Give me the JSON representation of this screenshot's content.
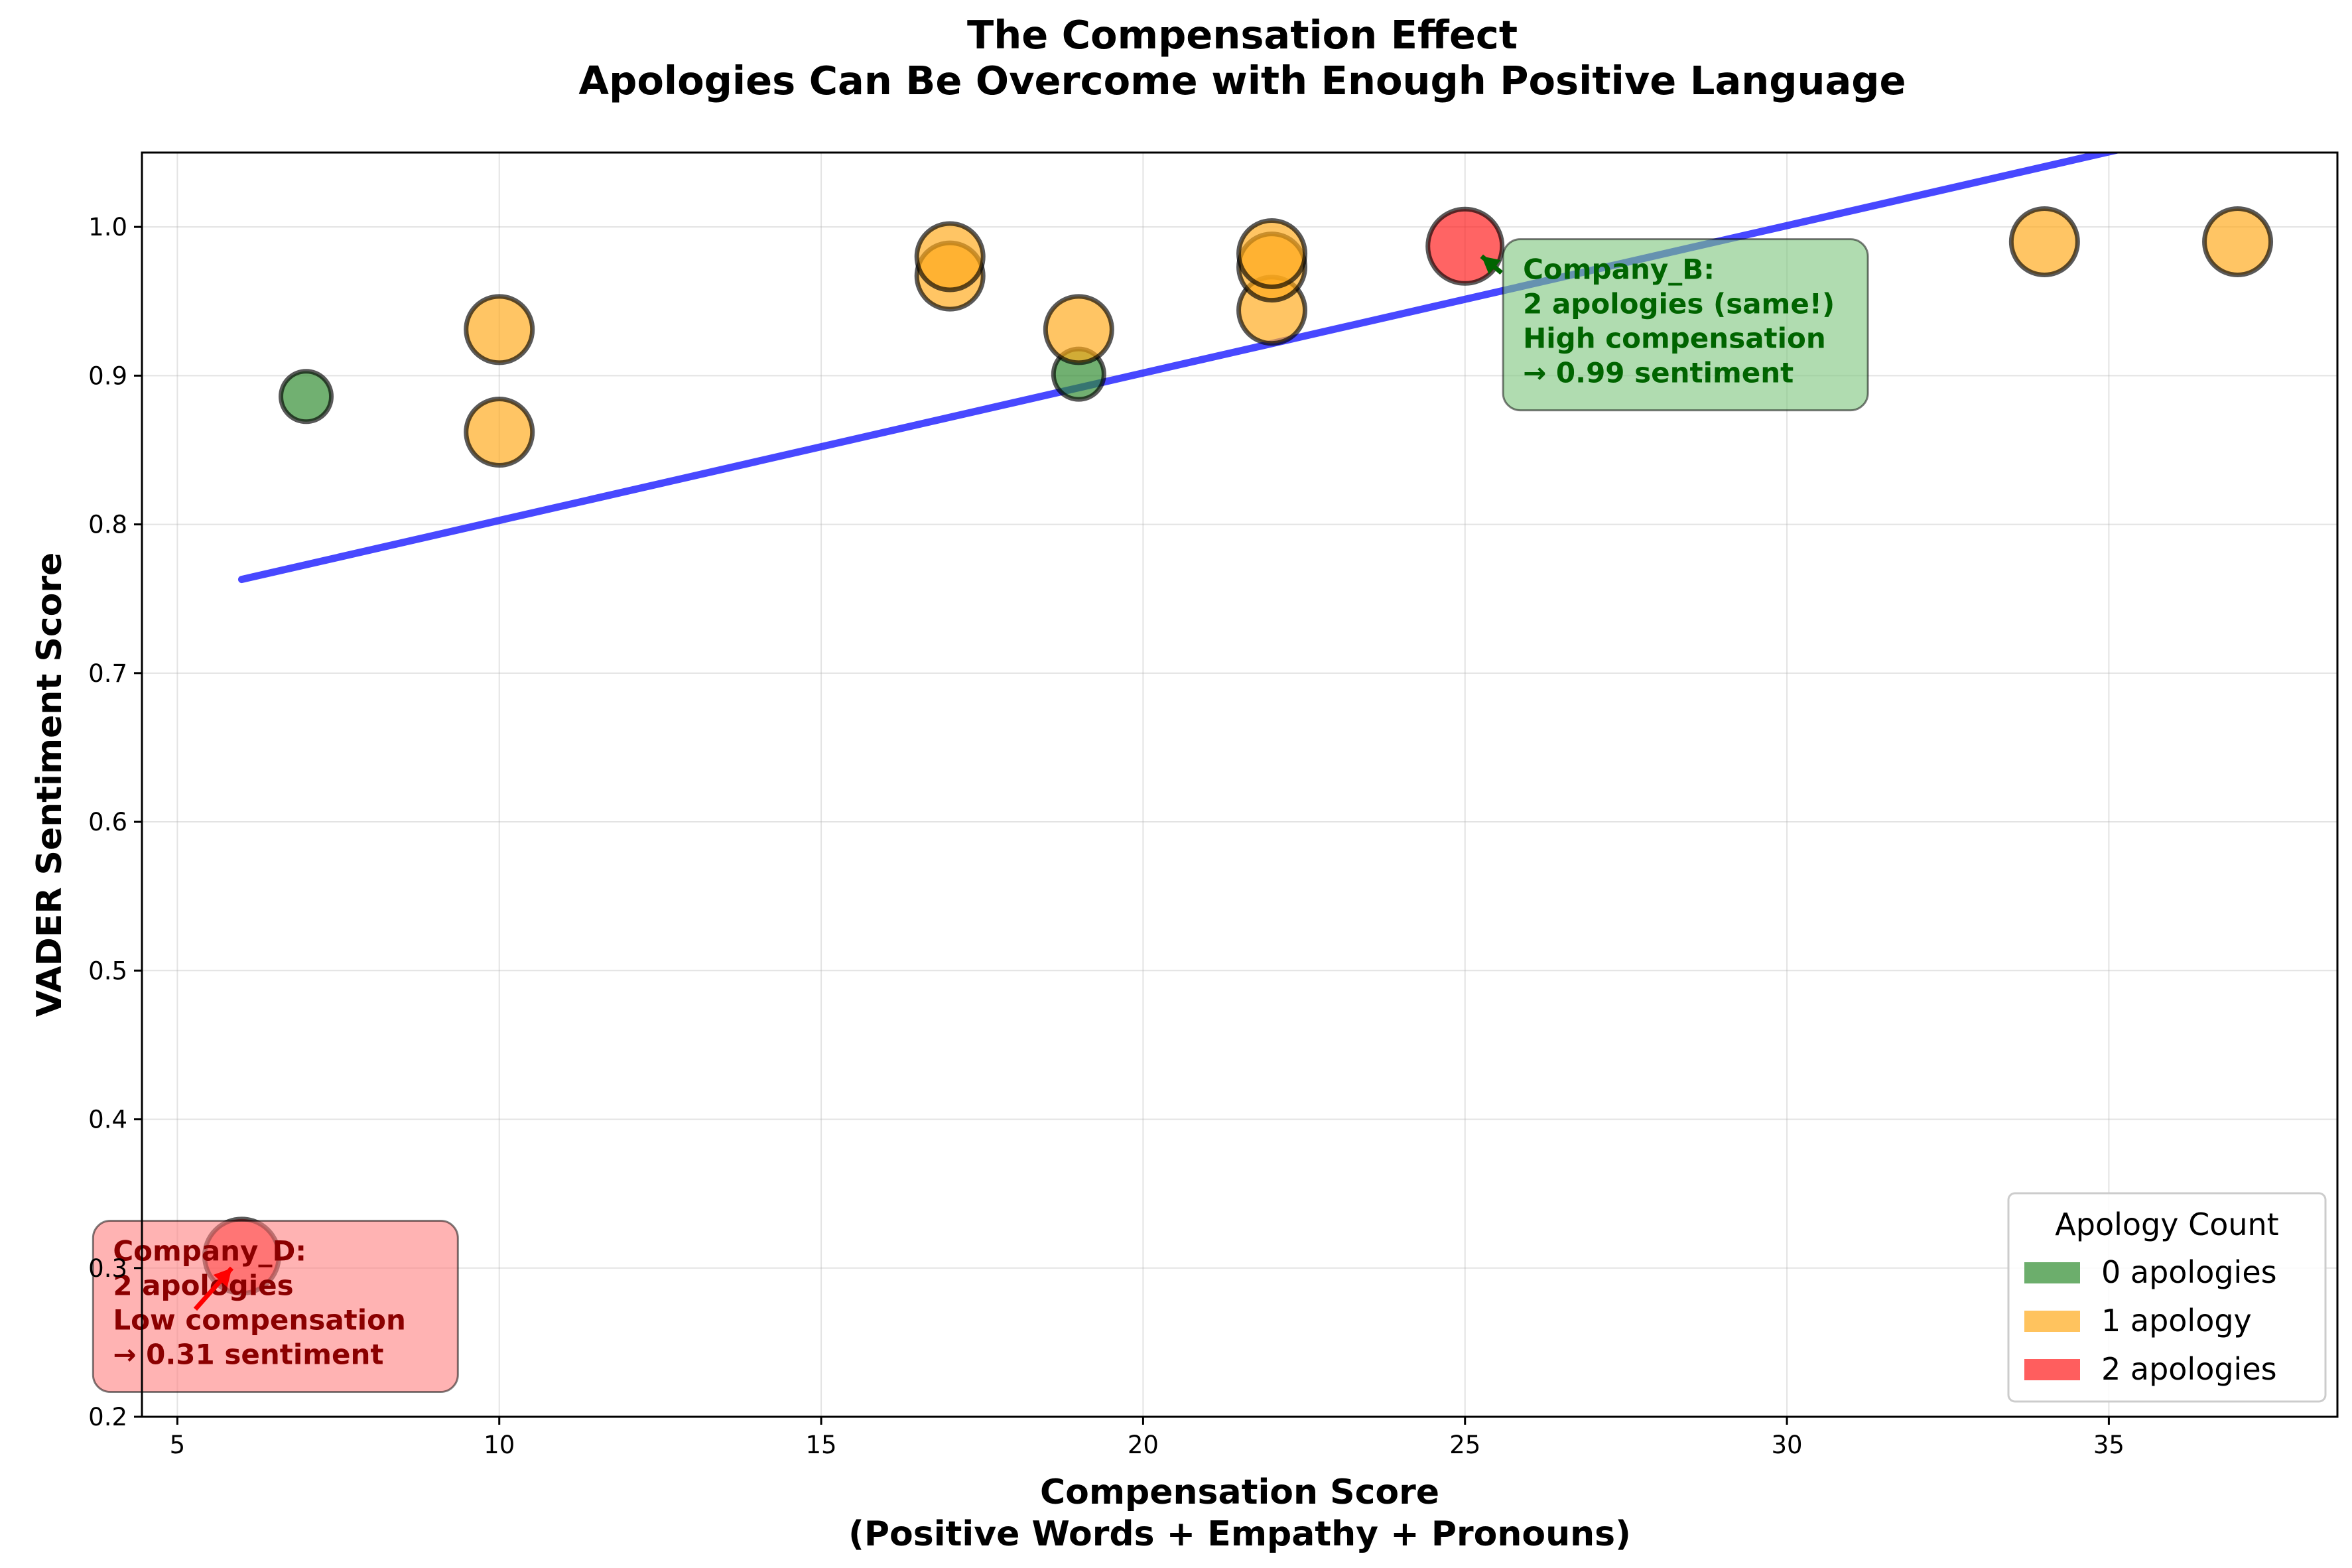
{
  "chart_data": {
    "type": "scatter",
    "title": "The Compensation Effect",
    "subtitle": "Apologies Can Be Overcome with Enough Positive Language",
    "xlabel": "Compensation Score",
    "xlabel_line2": "(Positive Words + Empathy + Pronouns)",
    "ylabel": "VADER Sentiment Score",
    "xlim": [
      4.45,
      38.55
    ],
    "ylim": [
      0.2,
      1.05
    ],
    "xticks": [
      5,
      10,
      15,
      20,
      25,
      30,
      35
    ],
    "yticks": [
      0.2,
      0.3,
      0.4,
      0.5,
      0.6,
      0.7,
      0.8,
      0.9,
      1.0
    ],
    "grid": true,
    "legend": {
      "title": "Apology Count",
      "placement": "bottom-right",
      "entries": [
        {
          "label": "0 apologies",
          "color": "#2e8b2e"
        },
        {
          "label": "1 apology",
          "color": "#ffaa1a"
        },
        {
          "label": "2 apologies",
          "color": "#ff1a1a"
        }
      ]
    },
    "colors": {
      "0": "#2e8b2e",
      "1": "#ffaa1a",
      "2": "#ff1a1a"
    },
    "points": [
      {
        "x": 7,
        "y": 0.886,
        "apologies": 0
      },
      {
        "x": 19,
        "y": 0.901,
        "apologies": 0
      },
      {
        "x": 10,
        "y": 0.931,
        "apologies": 1
      },
      {
        "x": 10,
        "y": 0.862,
        "apologies": 1
      },
      {
        "x": 17,
        "y": 0.967,
        "apologies": 1
      },
      {
        "x": 17,
        "y": 0.98,
        "apologies": 1
      },
      {
        "x": 19,
        "y": 0.931,
        "apologies": 1
      },
      {
        "x": 22,
        "y": 0.944,
        "apologies": 1
      },
      {
        "x": 22,
        "y": 0.973,
        "apologies": 1
      },
      {
        "x": 22,
        "y": 0.982,
        "apologies": 1
      },
      {
        "x": 34,
        "y": 0.99,
        "apologies": 1
      },
      {
        "x": 37,
        "y": 0.99,
        "apologies": 1
      },
      {
        "x": 25,
        "y": 0.987,
        "apologies": 2
      },
      {
        "x": 6,
        "y": 0.308,
        "apologies": 2
      }
    ],
    "trend_line": {
      "color": "#1a1aff",
      "x": [
        6,
        40
      ],
      "y": [
        0.763,
        1.1
      ]
    },
    "annotations": [
      {
        "lines": [
          "Company_B:",
          "2 apologies (same!)",
          "High compensation",
          "→ 0.99 sentiment"
        ],
        "text_color": "#006400",
        "box_color": "#7cc47c",
        "arrow_color": "#006400",
        "point": {
          "x": 25,
          "y": 0.987
        },
        "text_at": {
          "x": 25.9,
          "y": 0.965
        }
      },
      {
        "lines": [
          "Company_D:",
          "2 apologies",
          "Low compensation",
          "→ 0.31 sentiment"
        ],
        "text_color": "#8b0000",
        "box_color": "#ff8080",
        "arrow_color": "#ff0000",
        "point": {
          "x": 6,
          "y": 0.308
        },
        "text_at": {
          "x": 4.0,
          "y": 0.305
        }
      }
    ]
  }
}
